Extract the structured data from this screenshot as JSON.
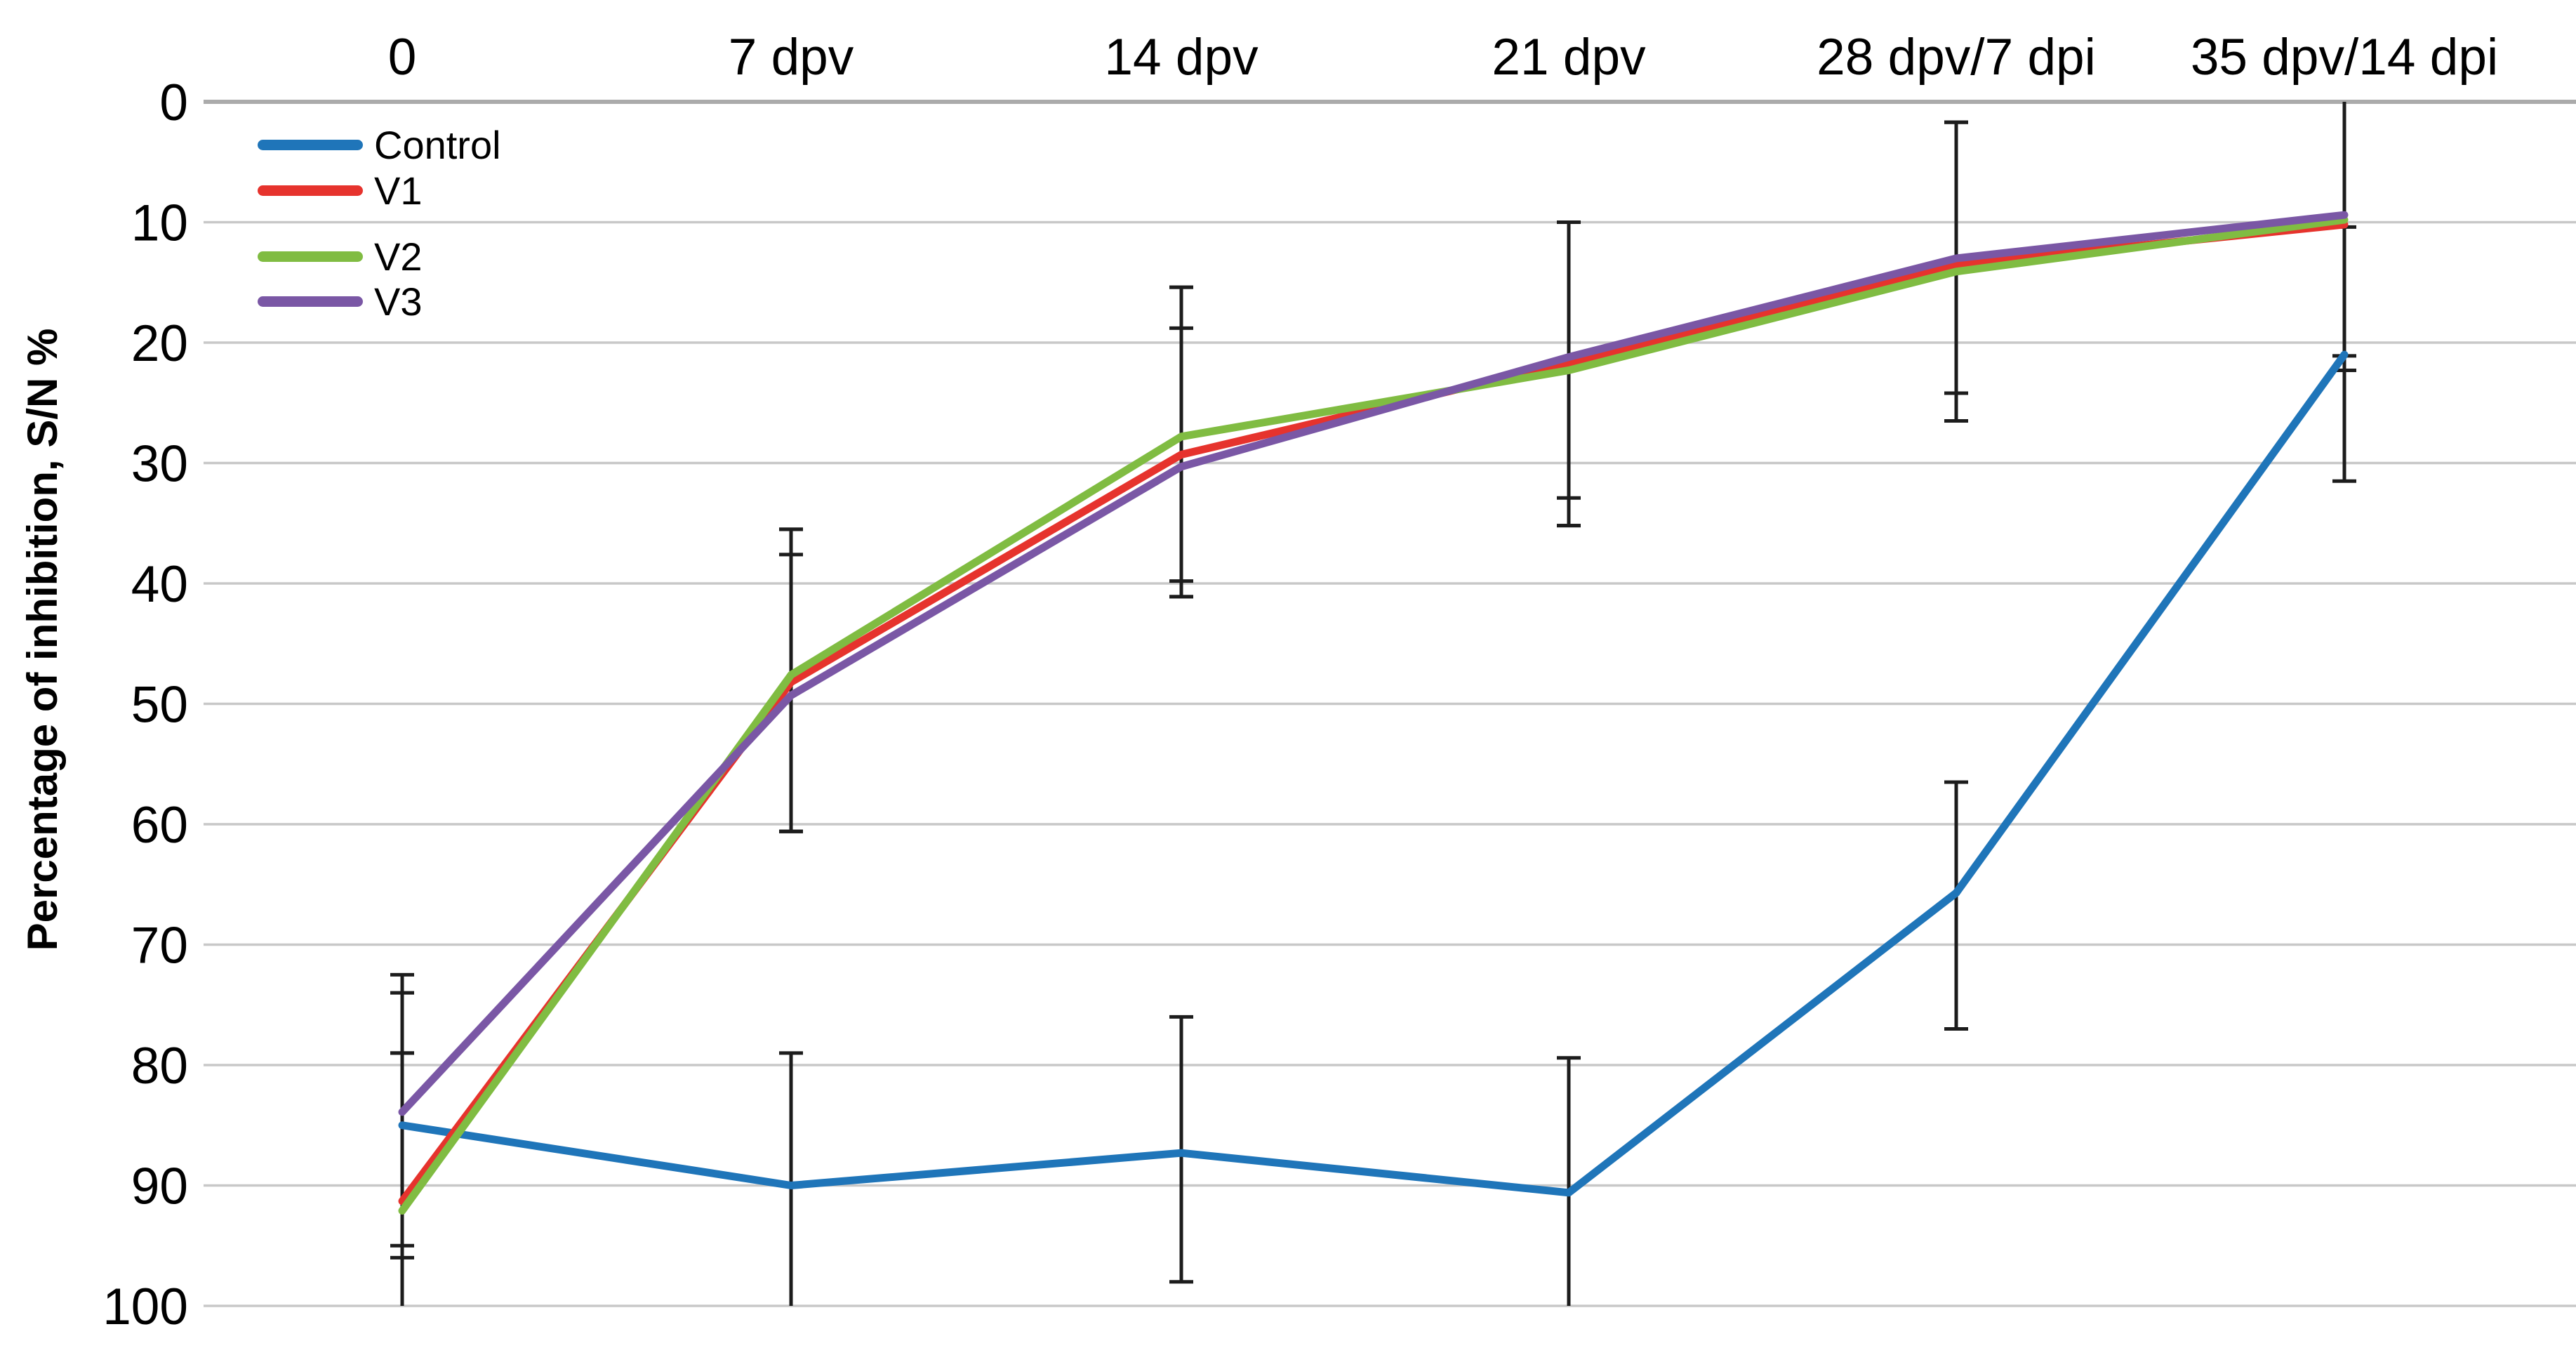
{
  "figure": {
    "background": "#FFFFFF"
  },
  "chart_data": {
    "type": "line",
    "title": "",
    "xlabel": "",
    "ylabel": "Percentage of inhibition, S/N %",
    "categories": [
      "0",
      "7 dpv",
      "14 dpv",
      "21 dpv",
      "28 dpv/7 dpi",
      "35 dpv/14 dpi"
    ],
    "y_ticks": [
      0,
      10,
      20,
      30,
      40,
      50,
      60,
      70,
      80,
      90,
      100
    ],
    "y_axis": {
      "min": 0,
      "max": 100,
      "step": 10,
      "inverted": true,
      "grid": true
    },
    "legend": {
      "position": "top-left"
    },
    "grid_color": "#C8C8C8",
    "axis_line_color": "#ABABAB",
    "error_bar_color": "#1C1C1C",
    "text_color": "#000000",
    "series": [
      {
        "name": "Control",
        "color": "#1F75B9",
        "values": [
          85.0,
          90.0,
          87.3,
          90.6,
          65.7,
          21.0
        ],
        "err_lo": [
          74.0,
          79.0,
          76.0,
          79.4,
          56.5,
          10.4
        ],
        "err_hi": [
          96.0,
          100.0,
          98.0,
          100.0,
          77.0,
          31.5
        ]
      },
      {
        "name": "V1",
        "color": "#E6332D",
        "values": [
          91.3,
          48.2,
          29.3,
          21.7,
          13.5,
          10.2
        ],
        "err_lo": [
          79.0,
          35.5,
          15.4,
          10.0,
          1.7,
          0.0
        ],
        "err_hi": [
          100.0,
          60.6,
          41.1,
          35.2,
          26.5,
          22.3
        ]
      },
      {
        "name": "V2",
        "color": "#80BC42",
        "values": [
          92.1,
          47.6,
          27.8,
          22.3,
          14.1,
          9.8
        ],
        "err_lo": [
          79.0,
          37.6,
          18.8,
          10.0,
          1.7,
          0.0
        ],
        "err_hi": [
          100.0,
          60.6,
          39.8,
          32.9,
          24.2,
          21.1
        ]
      },
      {
        "name": "V3",
        "color": "#7A57A5",
        "values": [
          83.9,
          49.3,
          30.3,
          21.2,
          13.0,
          9.4
        ],
        "err_lo": [
          72.5,
          35.5,
          15.4,
          10.0,
          1.7,
          0.0
        ],
        "err_hi": [
          95.0,
          60.6,
          41.1,
          35.2,
          26.5,
          22.3
        ]
      }
    ]
  }
}
